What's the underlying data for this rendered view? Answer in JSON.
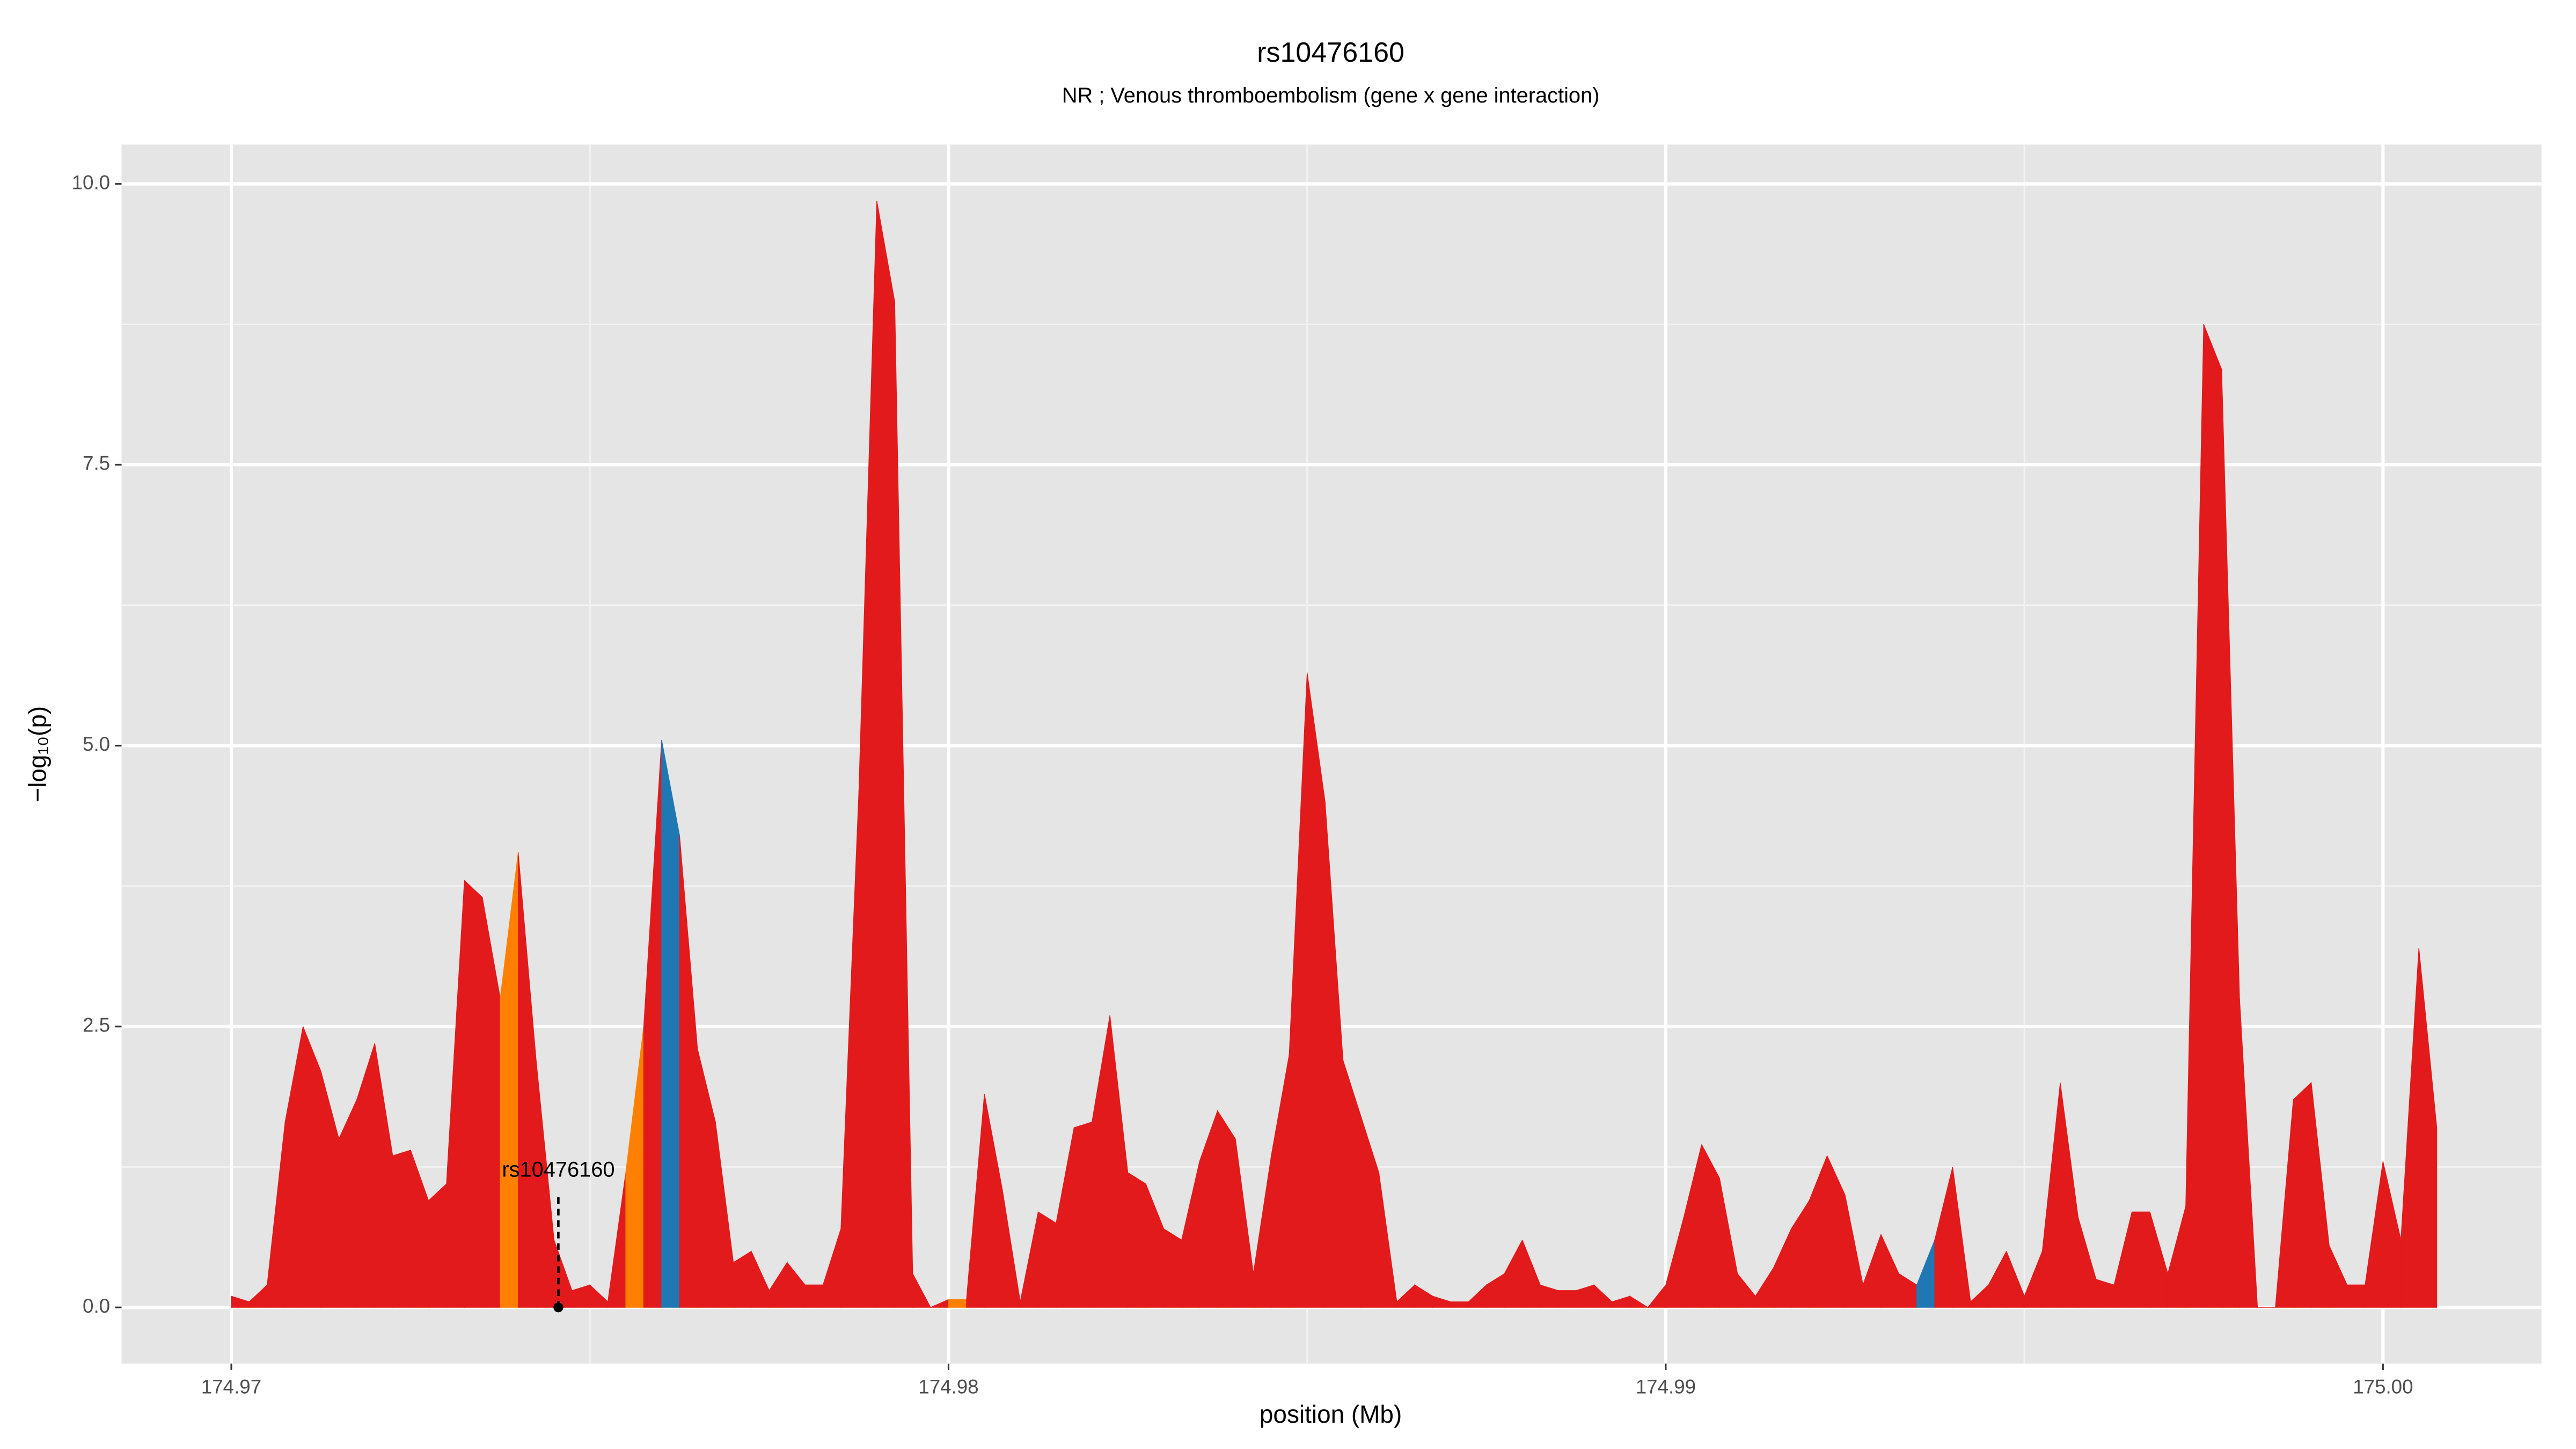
{
  "chart_data": {
    "type": "area",
    "title": "rs10476160",
    "subtitle": "NR ; Venous thromboembolism (gene x gene interaction)",
    "x_label": "position (Mb)",
    "y_label": "−log₁₀(p)",
    "xlim": [
      174.96847,
      175.00221
    ],
    "ylim": [
      -0.5,
      10.35
    ],
    "xticks": [
      174.97,
      174.98,
      174.99,
      {
        "value": 175,
        "label": "175.00"
      }
    ],
    "yticks": [
      {
        "value": 0,
        "label": "0.0"
      },
      2.5,
      {
        "value": 5,
        "label": "5.0"
      },
      7.5,
      {
        "value": 10,
        "label": "10.0"
      }
    ],
    "grid": true,
    "x": [
      174.97,
      174.97025,
      174.9705,
      174.97075,
      174.971,
      174.97125,
      174.9715,
      174.97175,
      174.972,
      174.97225,
      174.9725,
      174.97275,
      174.973,
      174.97325,
      174.9735,
      174.97375,
      174.974,
      174.97425,
      174.9745,
      174.97475,
      174.975,
      174.97525,
      174.9755,
      174.97575,
      174.976,
      174.97625,
      174.9765,
      174.97675,
      174.977,
      174.97725,
      174.9775,
      174.97775,
      174.978,
      174.97825,
      174.9785,
      174.97875,
      174.979,
      174.97925,
      174.9795,
      174.97975,
      174.98,
      174.98025,
      174.9805,
      174.98075,
      174.981,
      174.98125,
      174.9815,
      174.98175,
      174.982,
      174.98225,
      174.9825,
      174.98275,
      174.983,
      174.98325,
      174.9835,
      174.98375,
      174.984,
      174.98425,
      174.9845,
      174.98475,
      174.985,
      174.98525,
      174.9855,
      174.98575,
      174.986,
      174.98625,
      174.9865,
      174.98675,
      174.987,
      174.98725,
      174.9875,
      174.98775,
      174.988,
      174.98825,
      174.9885,
      174.98875,
      174.989,
      174.98925,
      174.9895,
      174.98975,
      174.99,
      174.99025,
      174.9905,
      174.99075,
      174.991,
      174.99125,
      174.9915,
      174.99175,
      174.992,
      174.99225,
      174.9925,
      174.99275,
      174.993,
      174.99325,
      174.9935,
      174.99375,
      174.994,
      174.99425,
      174.9945,
      174.99475,
      174.995,
      174.99525,
      174.9955,
      174.99575,
      174.996,
      174.99625,
      174.9965,
      174.99675,
      174.997,
      174.99725,
      174.9975,
      174.99775,
      174.998,
      174.99825,
      174.9985,
      174.99875,
      174.999,
      174.99925,
      174.9995,
      174.99975,
      175.0,
      175.00025,
      175.0005,
      175.00075
    ],
    "values": [
      0.1,
      0.05,
      0.2,
      1.65,
      2.5,
      2.1,
      1.5,
      1.85,
      2.35,
      1.35,
      1.4,
      0.95,
      1.1,
      3.8,
      3.65,
      2.75,
      4.05,
      2.2,
      0.6,
      0.15,
      0.2,
      0.05,
      1.2,
      2.5,
      5.05,
      4.2,
      2.3,
      1.65,
      0.4,
      0.5,
      0.15,
      0.4,
      0.2,
      0.2,
      0.7,
      4.6,
      9.85,
      8.95,
      0.3,
      0,
      0.07,
      0.07,
      1.9,
      1.05,
      0.05,
      0.85,
      0.75,
      1.6,
      1.65,
      2.6,
      1.2,
      1.1,
      0.7,
      0.6,
      1.3,
      1.75,
      1.5,
      0.3,
      1.35,
      2.25,
      5.65,
      4.5,
      2.2,
      1.7,
      1.2,
      0.05,
      0.2,
      0.1,
      0.05,
      0.05,
      0.2,
      0.3,
      0.6,
      0.2,
      0.15,
      0.15,
      0.2,
      0.05,
      0.1,
      0,
      0.2,
      0.8,
      1.45,
      1.15,
      0.3,
      0.1,
      0.35,
      0.7,
      0.95,
      1.35,
      1.0,
      0.2,
      0.65,
      0.3,
      0.2,
      0.6,
      1.25,
      0.05,
      0.2,
      0.5,
      0.1,
      0.5,
      2.0,
      0.8,
      0.25,
      0.2,
      0.85,
      0.85,
      0.3,
      0.9,
      8.75,
      8.35,
      2.75,
      0,
      0,
      1.85,
      2.0,
      0.55,
      0.2,
      0.2,
      1.3,
      0.6,
      3.2,
      1.6
    ],
    "fills": [
      "#e31a1c",
      "#e31a1c",
      "#e31a1c",
      "#e31a1c",
      "#e31a1c",
      "#e31a1c",
      "#e31a1c",
      "#e31a1c",
      "#e31a1c",
      "#e31a1c",
      "#e31a1c",
      "#e31a1c",
      "#e31a1c",
      "#e31a1c",
      "#e31a1c",
      "#ff7f00",
      "#e31a1c",
      "#e31a1c",
      "#e31a1c",
      "#e31a1c",
      "#e31a1c",
      "#e31a1c",
      "#ff7f00",
      "#e31a1c",
      "#1f78b4",
      "#e31a1c",
      "#e31a1c",
      "#e31a1c",
      "#e31a1c",
      "#e31a1c",
      "#e31a1c",
      "#e31a1c",
      "#e31a1c",
      "#e31a1c",
      "#e31a1c",
      "#e31a1c",
      "#e31a1c",
      "#e31a1c",
      "#e31a1c",
      "#e31a1c",
      "#ff7f00",
      "#e31a1c",
      "#e31a1c",
      "#e31a1c",
      "#e31a1c",
      "#e31a1c",
      "#e31a1c",
      "#e31a1c",
      "#e31a1c",
      "#e31a1c",
      "#e31a1c",
      "#e31a1c",
      "#e31a1c",
      "#e31a1c",
      "#e31a1c",
      "#e31a1c",
      "#e31a1c",
      "#e31a1c",
      "#e31a1c",
      "#e31a1c",
      "#e31a1c",
      "#e31a1c",
      "#e31a1c",
      "#e31a1c",
      "#e31a1c",
      "#e31a1c",
      "#e31a1c",
      "#e31a1c",
      "#e31a1c",
      "#e31a1c",
      "#e31a1c",
      "#e31a1c",
      "#e31a1c",
      "#e31a1c",
      "#e31a1c",
      "#e31a1c",
      "#e31a1c",
      "#e31a1c",
      "#e31a1c",
      "#e31a1c",
      "#e31a1c",
      "#e31a1c",
      "#e31a1c",
      "#e31a1c",
      "#e31a1c",
      "#e31a1c",
      "#e31a1c",
      "#e31a1c",
      "#e31a1c",
      "#e31a1c",
      "#e31a1c",
      "#e31a1c",
      "#e31a1c",
      "#e31a1c",
      "#1f78b4",
      "#e31a1c",
      "#e31a1c",
      "#e31a1c",
      "#e31a1c",
      "#e31a1c",
      "#e31a1c",
      "#e31a1c",
      "#e31a1c",
      "#e31a1c",
      "#e31a1c",
      "#e31a1c",
      "#e31a1c",
      "#e31a1c",
      "#e31a1c",
      "#e31a1c",
      "#e31a1c",
      "#e31a1c",
      "#e31a1c",
      "#e31a1c",
      "#e31a1c",
      "#e31a1c",
      "#e31a1c",
      "#e31a1c",
      "#e31a1c",
      "#e31a1c",
      "#e31a1c",
      "#e31a1c",
      "#e31a1c"
    ],
    "annotation": {
      "text": "rs10476160",
      "x": 174.97456,
      "y": 0
    }
  }
}
